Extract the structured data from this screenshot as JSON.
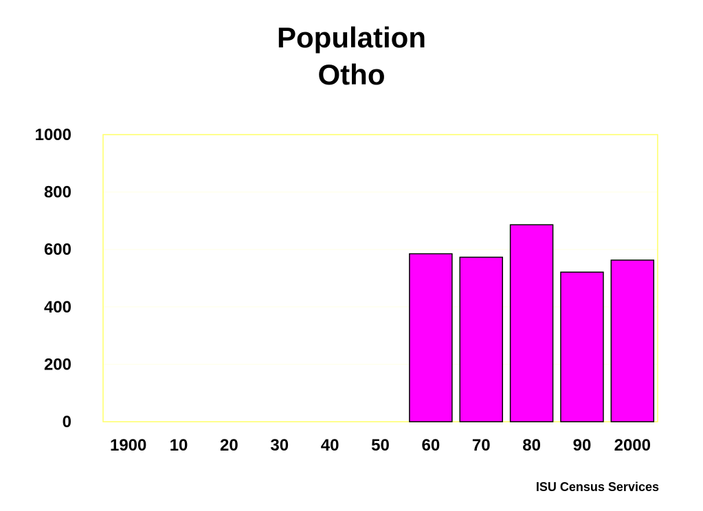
{
  "chart_data": {
    "type": "bar",
    "title": "Population",
    "subtitle": "Otho",
    "categories": [
      "1900",
      "10",
      "20",
      "30",
      "40",
      "50",
      "60",
      "70",
      "80",
      "90",
      "2000"
    ],
    "values": [
      0,
      0,
      0,
      0,
      0,
      0,
      585,
      573,
      686,
      521,
      563
    ],
    "ylim": [
      0,
      1000
    ],
    "yticks": [
      "0",
      "200",
      "400",
      "600",
      "800",
      "1000"
    ],
    "xlabel": "",
    "ylabel": "",
    "grid": true,
    "colors": {
      "bar": "#FF00FF",
      "frame": "#FFFF66",
      "grid": "#FFFFE6"
    }
  },
  "footer": {
    "credit": "ISU Census Services"
  }
}
